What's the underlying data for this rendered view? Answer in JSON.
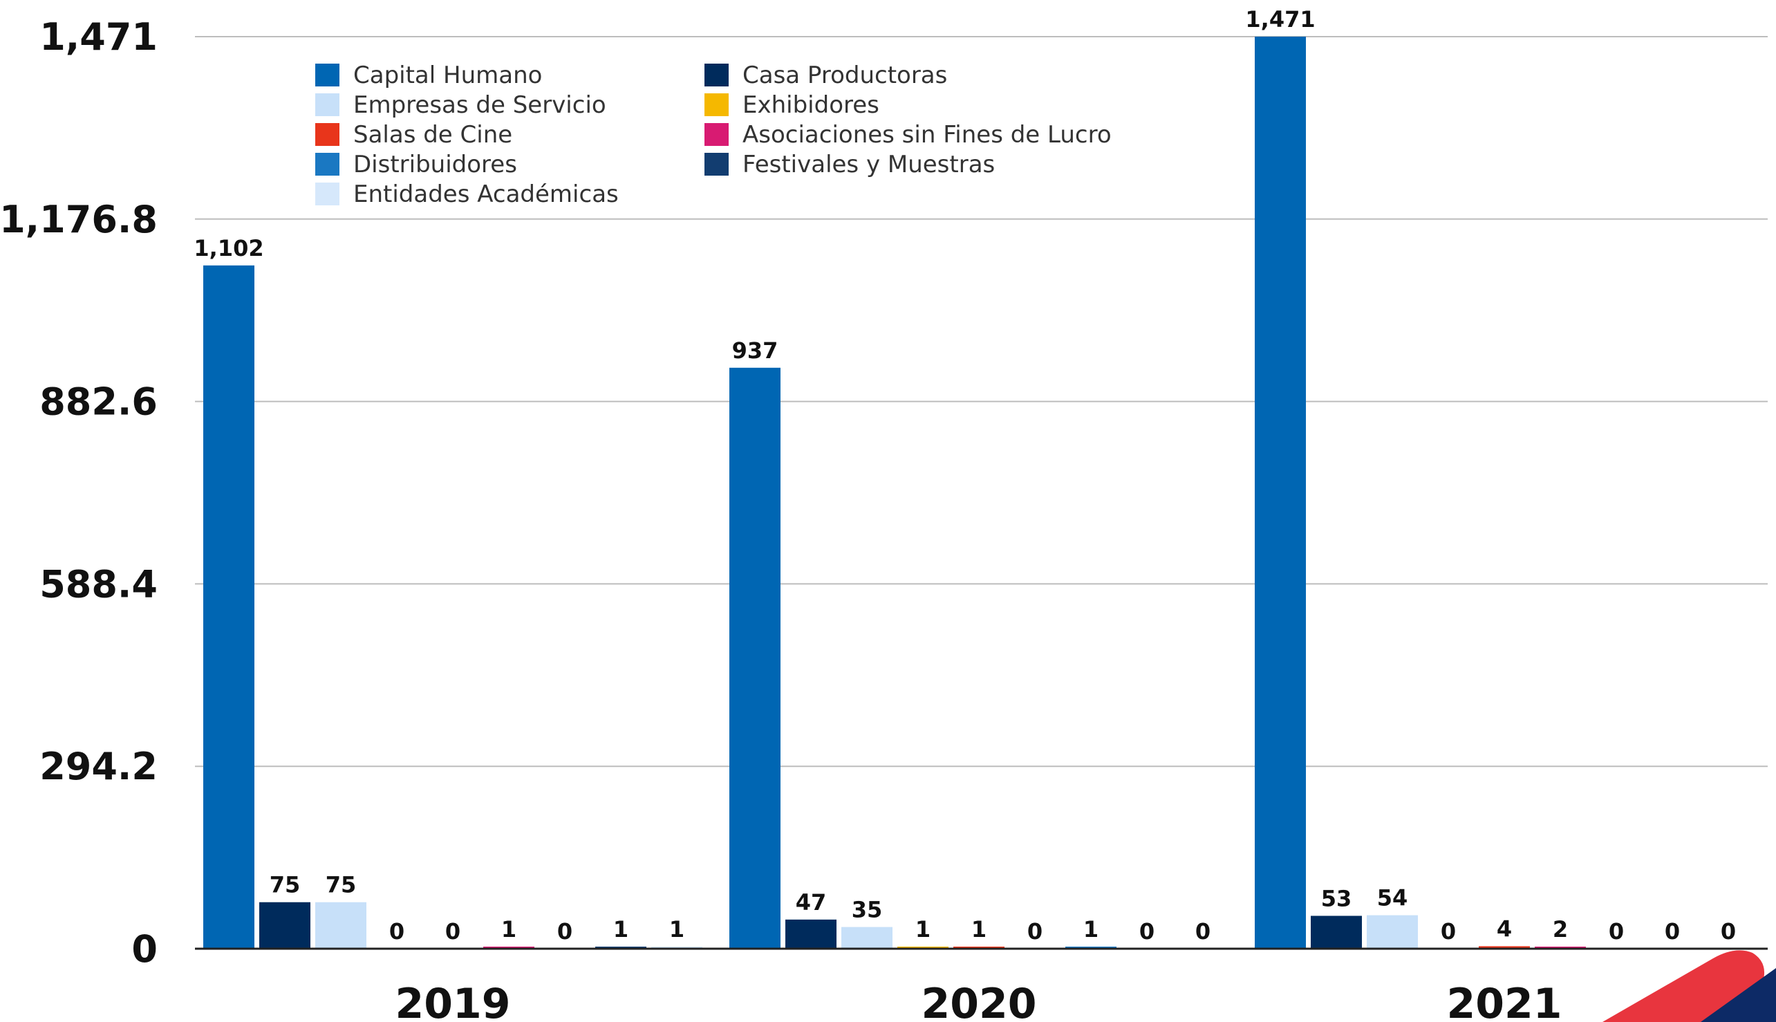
{
  "chart_data": {
    "type": "bar",
    "categories": [
      "2019",
      "2020",
      "2021"
    ],
    "ylim": [
      0,
      1471
    ],
    "yticks": [
      "0",
      "294.2",
      "588.4",
      "882.6",
      "1,176.8",
      "1,471"
    ],
    "grid": true,
    "legend_position": "top-left",
    "series": [
      {
        "name": "Capital Humano",
        "color": "#0066b3",
        "values": [
          1102,
          937,
          1471
        ],
        "labels": [
          "1,102",
          "937",
          "1,471"
        ]
      },
      {
        "name": "Casa Productoras",
        "color": "#002b5c",
        "values": [
          75,
          47,
          53
        ],
        "labels": [
          "75",
          "47",
          "53"
        ]
      },
      {
        "name": "Empresas de Servicio",
        "color": "#c7e0f9",
        "values": [
          75,
          35,
          54
        ],
        "labels": [
          "75",
          "35",
          "54"
        ]
      },
      {
        "name": "Exhibidores",
        "color": "#f5b800",
        "values": [
          0,
          1,
          0
        ],
        "labels": [
          "0",
          "1",
          "0"
        ]
      },
      {
        "name": "Salas de Cine",
        "color": "#e8351b",
        "values": [
          0,
          1,
          4
        ],
        "labels": [
          "0",
          "1",
          "4"
        ]
      },
      {
        "name": "Asociaciones sin Fines de Lucro",
        "color": "#d81b72",
        "values": [
          1,
          0,
          2
        ],
        "labels": [
          "1",
          "0",
          "2"
        ]
      },
      {
        "name": "Distribuidores",
        "color": "#1a78c2",
        "values": [
          0,
          1,
          0
        ],
        "labels": [
          "0",
          "1",
          "0"
        ]
      },
      {
        "name": "Festivales y Muestras",
        "color": "#123d70",
        "values": [
          1,
          0,
          0
        ],
        "labels": [
          "1",
          "0",
          "0"
        ]
      },
      {
        "name": "Entidades Académicas",
        "color": "#d6e8fb",
        "values": [
          1,
          0,
          0
        ],
        "labels": [
          "1",
          "0",
          "0"
        ]
      }
    ],
    "legend": [
      {
        "name": "Capital Humano",
        "color": "#0066b3"
      },
      {
        "name": "Casa Productoras",
        "color": "#002b5c"
      },
      {
        "name": "Empresas de Servicio",
        "color": "#c7e0f9"
      },
      {
        "name": "Exhibidores",
        "color": "#f5b800"
      },
      {
        "name": "Salas de Cine",
        "color": "#e8351b"
      },
      {
        "name": "Asociaciones sin Fines de Lucro",
        "color": "#d81b72"
      },
      {
        "name": "Distribuidores",
        "color": "#1a78c2"
      },
      {
        "name": "Festivales y Muestras",
        "color": "#123d70"
      },
      {
        "name": "Entidades Académicas",
        "color": "#d6e8fb"
      }
    ]
  },
  "decoration": {
    "accent_red": "#e8353e",
    "accent_navy": "#0d2a66"
  }
}
